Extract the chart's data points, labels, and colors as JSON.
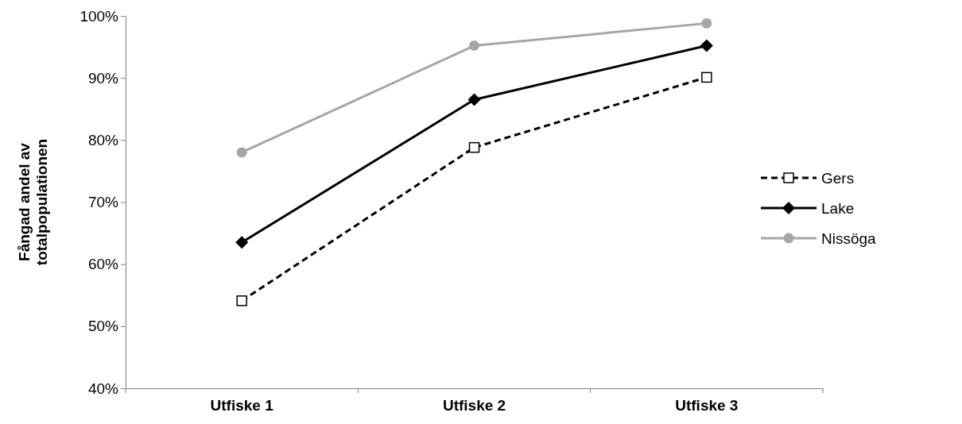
{
  "chart_data": {
    "type": "line",
    "ylabel": "Fångad andel av totalpopulationen",
    "categories": [
      "Utfiske 1",
      "Utfiske 2",
      "Utfiske 3"
    ],
    "series": [
      {
        "name": "Gers",
        "color": "#000000",
        "values": [
          54.1,
          78.8,
          90.1
        ],
        "marker": "square",
        "line_style": "dashed"
      },
      {
        "name": "Lake",
        "color": "#000000",
        "values": [
          63.5,
          86.5,
          95.2
        ],
        "marker": "diamond",
        "line_style": "solid"
      },
      {
        "name": "Nissöga",
        "color": "#a6a6a6",
        "values": [
          78.0,
          95.2,
          98.8
        ],
        "marker": "circle",
        "line_style": "solid"
      }
    ],
    "ylim": [
      40,
      100
    ],
    "yticks": [
      {
        "value": 40,
        "label": "40%"
      },
      {
        "value": 50,
        "label": "50%"
      },
      {
        "value": 60,
        "label": "60%"
      },
      {
        "value": 70,
        "label": "70%"
      },
      {
        "value": 80,
        "label": "80%"
      },
      {
        "value": 90,
        "label": "90%"
      },
      {
        "value": 100,
        "label": "100%"
      }
    ],
    "grid": false,
    "legend": "right"
  }
}
